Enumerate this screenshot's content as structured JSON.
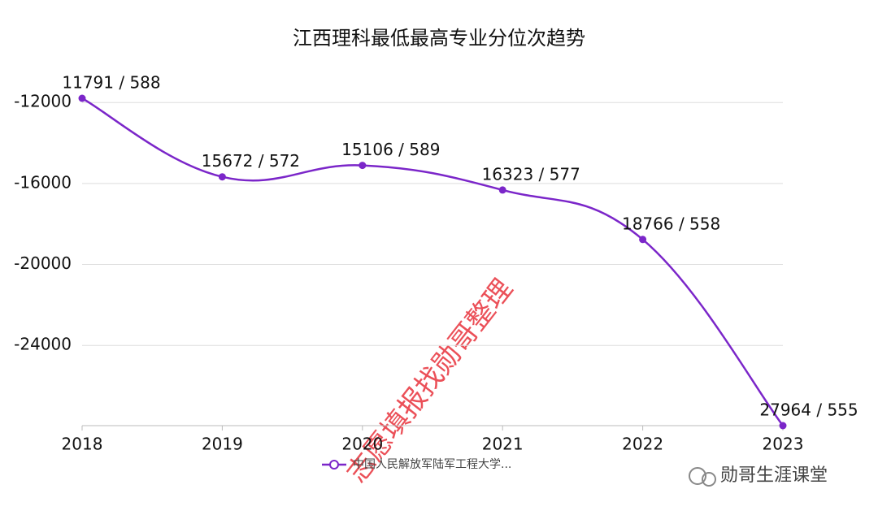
{
  "chart_data": {
    "type": "line",
    "title": "江西理科最低最高专业分位次趋势",
    "categories": [
      "2018",
      "2019",
      "2020",
      "2021",
      "2022",
      "2023"
    ],
    "series": [
      {
        "name": "中国人民解放军陆军工程大学...",
        "color": "#7b26c9",
        "values": [
          -11791,
          -15672,
          -15106,
          -16323,
          -18766,
          -27964
        ],
        "value_labels": [
          "11791 / 588",
          "15672 / 572",
          "15106 / 589",
          "16323 / 577",
          "18766 / 558",
          "27964 / 555"
        ]
      }
    ],
    "ylim": [
      -27964,
      -11791
    ],
    "yticks": [
      -12000,
      -16000,
      -20000,
      -24000
    ],
    "grid": true,
    "annotations": [
      "志愿填报找勋哥整理",
      "勋哥生涯课堂"
    ]
  }
}
